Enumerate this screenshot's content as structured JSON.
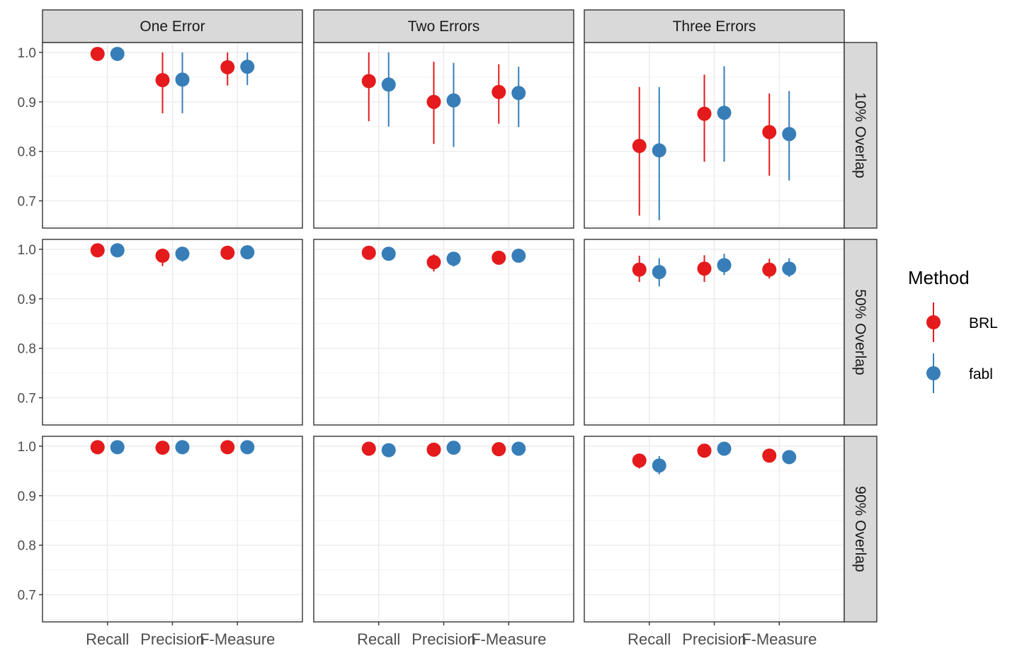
{
  "chart_data": {
    "type": "scatter",
    "facet_columns": [
      "One Error",
      "Two Errors",
      "Three Errors"
    ],
    "facet_rows": [
      "10% Overlap",
      "50% Overlap",
      "90% Overlap"
    ],
    "categories": [
      "Recall",
      "Precision",
      "F-Measure"
    ],
    "ylim": [
      0.645,
      1.02
    ],
    "y_ticks": [
      "0.7",
      "0.8",
      "0.9",
      "1.0"
    ],
    "grid": true,
    "legend": {
      "title": "Method",
      "position": "right"
    },
    "series": [
      {
        "name": "BRL",
        "color": "#e41a1c",
        "points": [
          {
            "col": 0,
            "row": 0,
            "category": "Recall",
            "y": 0.997,
            "lo": 0.99,
            "hi": 1.0
          },
          {
            "col": 0,
            "row": 0,
            "category": "Precision",
            "y": 0.944,
            "lo": 0.877,
            "hi": 1.0
          },
          {
            "col": 0,
            "row": 0,
            "category": "F-Measure",
            "y": 0.97,
            "lo": 0.933,
            "hi": 1.0
          },
          {
            "col": 1,
            "row": 0,
            "category": "Recall",
            "y": 0.942,
            "lo": 0.861,
            "hi": 1.0
          },
          {
            "col": 1,
            "row": 0,
            "category": "Precision",
            "y": 0.9,
            "lo": 0.815,
            "hi": 0.981
          },
          {
            "col": 1,
            "row": 0,
            "category": "F-Measure",
            "y": 0.92,
            "lo": 0.856,
            "hi": 0.976
          },
          {
            "col": 2,
            "row": 0,
            "category": "Recall",
            "y": 0.811,
            "lo": 0.67,
            "hi": 0.93
          },
          {
            "col": 2,
            "row": 0,
            "category": "Precision",
            "y": 0.876,
            "lo": 0.779,
            "hi": 0.955
          },
          {
            "col": 2,
            "row": 0,
            "category": "F-Measure",
            "y": 0.839,
            "lo": 0.751,
            "hi": 0.917
          },
          {
            "col": 0,
            "row": 1,
            "category": "Recall",
            "y": 0.998,
            "lo": 0.99,
            "hi": 1.0
          },
          {
            "col": 0,
            "row": 1,
            "category": "Precision",
            "y": 0.987,
            "lo": 0.966,
            "hi": 1.0
          },
          {
            "col": 0,
            "row": 1,
            "category": "F-Measure",
            "y": 0.993,
            "lo": 0.98,
            "hi": 1.0
          },
          {
            "col": 1,
            "row": 1,
            "category": "Recall",
            "y": 0.993,
            "lo": 0.98,
            "hi": 1.0
          },
          {
            "col": 1,
            "row": 1,
            "category": "Precision",
            "y": 0.974,
            "lo": 0.955,
            "hi": 0.99
          },
          {
            "col": 1,
            "row": 1,
            "category": "F-Measure",
            "y": 0.983,
            "lo": 0.97,
            "hi": 0.995
          },
          {
            "col": 2,
            "row": 1,
            "category": "Recall",
            "y": 0.959,
            "lo": 0.934,
            "hi": 0.987
          },
          {
            "col": 2,
            "row": 1,
            "category": "Precision",
            "y": 0.961,
            "lo": 0.934,
            "hi": 0.988
          },
          {
            "col": 2,
            "row": 1,
            "category": "F-Measure",
            "y": 0.959,
            "lo": 0.941,
            "hi": 0.981
          },
          {
            "col": 0,
            "row": 2,
            "category": "Recall",
            "y": 0.998,
            "lo": 0.99,
            "hi": 1.0
          },
          {
            "col": 0,
            "row": 2,
            "category": "Precision",
            "y": 0.997,
            "lo": 0.99,
            "hi": 1.0
          },
          {
            "col": 0,
            "row": 2,
            "category": "F-Measure",
            "y": 0.998,
            "lo": 0.99,
            "hi": 1.0
          },
          {
            "col": 1,
            "row": 2,
            "category": "Recall",
            "y": 0.995,
            "lo": 0.985,
            "hi": 1.0
          },
          {
            "col": 1,
            "row": 2,
            "category": "Precision",
            "y": 0.993,
            "lo": 0.983,
            "hi": 1.0
          },
          {
            "col": 1,
            "row": 2,
            "category": "F-Measure",
            "y": 0.994,
            "lo": 0.985,
            "hi": 1.0
          },
          {
            "col": 2,
            "row": 2,
            "category": "Recall",
            "y": 0.971,
            "lo": 0.955,
            "hi": 0.985
          },
          {
            "col": 2,
            "row": 2,
            "category": "Precision",
            "y": 0.991,
            "lo": 0.98,
            "hi": 1.0
          },
          {
            "col": 2,
            "row": 2,
            "category": "F-Measure",
            "y": 0.981,
            "lo": 0.97,
            "hi": 0.99
          }
        ]
      },
      {
        "name": "fabl",
        "color": "#377eb8",
        "points": [
          {
            "col": 0,
            "row": 0,
            "category": "Recall",
            "y": 0.997,
            "lo": 0.99,
            "hi": 1.0
          },
          {
            "col": 0,
            "row": 0,
            "category": "Precision",
            "y": 0.945,
            "lo": 0.877,
            "hi": 1.0
          },
          {
            "col": 0,
            "row": 0,
            "category": "F-Measure",
            "y": 0.971,
            "lo": 0.934,
            "hi": 1.0
          },
          {
            "col": 1,
            "row": 0,
            "category": "Recall",
            "y": 0.935,
            "lo": 0.85,
            "hi": 1.0
          },
          {
            "col": 1,
            "row": 0,
            "category": "Precision",
            "y": 0.903,
            "lo": 0.809,
            "hi": 0.979
          },
          {
            "col": 1,
            "row": 0,
            "category": "F-Measure",
            "y": 0.918,
            "lo": 0.849,
            "hi": 0.971
          },
          {
            "col": 2,
            "row": 0,
            "category": "Recall",
            "y": 0.802,
            "lo": 0.661,
            "hi": 0.93
          },
          {
            "col": 2,
            "row": 0,
            "category": "Precision",
            "y": 0.878,
            "lo": 0.779,
            "hi": 0.972
          },
          {
            "col": 2,
            "row": 0,
            "category": "F-Measure",
            "y": 0.835,
            "lo": 0.741,
            "hi": 0.922
          },
          {
            "col": 0,
            "row": 1,
            "category": "Recall",
            "y": 0.998,
            "lo": 0.99,
            "hi": 1.0
          },
          {
            "col": 0,
            "row": 1,
            "category": "Precision",
            "y": 0.991,
            "lo": 0.975,
            "hi": 1.0
          },
          {
            "col": 0,
            "row": 1,
            "category": "F-Measure",
            "y": 0.994,
            "lo": 0.984,
            "hi": 1.0
          },
          {
            "col": 1,
            "row": 1,
            "category": "Recall",
            "y": 0.991,
            "lo": 0.978,
            "hi": 1.0
          },
          {
            "col": 1,
            "row": 1,
            "category": "Precision",
            "y": 0.981,
            "lo": 0.965,
            "hi": 0.995
          },
          {
            "col": 1,
            "row": 1,
            "category": "F-Measure",
            "y": 0.987,
            "lo": 0.975,
            "hi": 0.998
          },
          {
            "col": 2,
            "row": 1,
            "category": "Recall",
            "y": 0.954,
            "lo": 0.925,
            "hi": 0.982
          },
          {
            "col": 2,
            "row": 1,
            "category": "Precision",
            "y": 0.968,
            "lo": 0.948,
            "hi": 0.991
          },
          {
            "col": 2,
            "row": 1,
            "category": "F-Measure",
            "y": 0.961,
            "lo": 0.944,
            "hi": 0.982
          },
          {
            "col": 0,
            "row": 2,
            "category": "Recall",
            "y": 0.998,
            "lo": 0.99,
            "hi": 1.0
          },
          {
            "col": 0,
            "row": 2,
            "category": "Precision",
            "y": 0.998,
            "lo": 0.99,
            "hi": 1.0
          },
          {
            "col": 0,
            "row": 2,
            "category": "F-Measure",
            "y": 0.998,
            "lo": 0.99,
            "hi": 1.0
          },
          {
            "col": 1,
            "row": 2,
            "category": "Recall",
            "y": 0.992,
            "lo": 0.982,
            "hi": 1.0
          },
          {
            "col": 1,
            "row": 2,
            "category": "Precision",
            "y": 0.997,
            "lo": 0.987,
            "hi": 1.0
          },
          {
            "col": 1,
            "row": 2,
            "category": "F-Measure",
            "y": 0.995,
            "lo": 0.985,
            "hi": 1.0
          },
          {
            "col": 2,
            "row": 2,
            "category": "Recall",
            "y": 0.961,
            "lo": 0.943,
            "hi": 0.98
          },
          {
            "col": 2,
            "row": 2,
            "category": "Precision",
            "y": 0.995,
            "lo": 0.985,
            "hi": 1.0
          },
          {
            "col": 2,
            "row": 2,
            "category": "F-Measure",
            "y": 0.978,
            "lo": 0.968,
            "hi": 0.988
          }
        ]
      }
    ]
  }
}
